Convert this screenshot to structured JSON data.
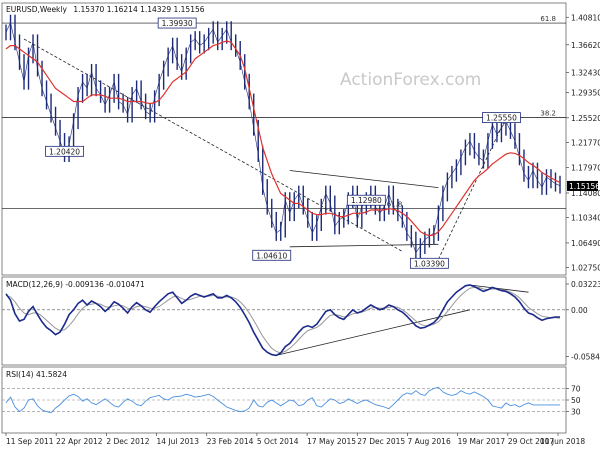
{
  "chart_data": [
    {
      "type": "candlestick",
      "title": "EURUSD,Weekly",
      "ohlc_readout": "1.15370 1.16214 1.14329 1.15156",
      "watermark": "ActionForex.com",
      "ylim": [
        1.0222,
        1.4237
      ],
      "yticks": [
        "1.40810",
        "1.36620",
        "1.32430",
        "1.29350",
        "1.25520",
        "1.21770",
        "1.17970",
        "1.14080",
        "1.10340",
        "1.06490",
        "1.02750"
      ],
      "ytick_values": [
        1.4081,
        1.3662,
        1.3243,
        1.2935,
        1.2552,
        1.2177,
        1.1797,
        1.1408,
        1.1034,
        1.0649,
        1.0275
      ],
      "current_price": {
        "value": 1.15156,
        "label": "1.15156",
        "color": "#000000"
      },
      "series": [
        {
          "name": "price",
          "color": "#1c2a78",
          "values": [
            1.385,
            1.4,
            1.37,
            1.34,
            1.31,
            1.35,
            1.37,
            1.33,
            1.3,
            1.28,
            1.26,
            1.24,
            1.22,
            1.2,
            1.215,
            1.25,
            1.29,
            1.31,
            1.3,
            1.325,
            1.3,
            1.29,
            1.275,
            1.29,
            1.31,
            1.28,
            1.275,
            1.26,
            1.29,
            1.3,
            1.28,
            1.265,
            1.26,
            1.285,
            1.31,
            1.33,
            1.35,
            1.365,
            1.34,
            1.325,
            1.35,
            1.37,
            1.375,
            1.365,
            1.37,
            1.38,
            1.39,
            1.37,
            1.38,
            1.39,
            1.37,
            1.36,
            1.34,
            1.31,
            1.28,
            1.24,
            1.2,
            1.15,
            1.12,
            1.1,
            1.08,
            1.085,
            1.13,
            1.11,
            1.13,
            1.14,
            1.12,
            1.1,
            1.08,
            1.095,
            1.12,
            1.14,
            1.125,
            1.09,
            1.1,
            1.105,
            1.13,
            1.14,
            1.1,
            1.12,
            1.13,
            1.14,
            1.12,
            1.11,
            1.12,
            1.14,
            1.12,
            1.11,
            1.1,
            1.08,
            1.07,
            1.05,
            1.06,
            1.07,
            1.075,
            1.08,
            1.11,
            1.14,
            1.16,
            1.17,
            1.18,
            1.195,
            1.21,
            1.22,
            1.205,
            1.195,
            1.19,
            1.22,
            1.245,
            1.23,
            1.24,
            1.25,
            1.235,
            1.22,
            1.195,
            1.17,
            1.16,
            1.175,
            1.16,
            1.15,
            1.165,
            1.16,
            1.155,
            1.152
          ]
        },
        {
          "name": "ma",
          "color": "#e0322c",
          "values": [
            1.36,
            1.365,
            1.365,
            1.36,
            1.355,
            1.35,
            1.345,
            1.34,
            1.33,
            1.32,
            1.31,
            1.3,
            1.295,
            1.29,
            1.285,
            1.28,
            1.28,
            1.28,
            1.285,
            1.29,
            1.29,
            1.29,
            1.288,
            1.285,
            1.285,
            1.285,
            1.283,
            1.28,
            1.28,
            1.28,
            1.28,
            1.278,
            1.277,
            1.278,
            1.282,
            1.29,
            1.3,
            1.31,
            1.315,
            1.32,
            1.325,
            1.335,
            1.345,
            1.35,
            1.355,
            1.36,
            1.365,
            1.367,
            1.37,
            1.372,
            1.37,
            1.36,
            1.35,
            1.33,
            1.3,
            1.27,
            1.24,
            1.21,
            1.19,
            1.17,
            1.155,
            1.14,
            1.135,
            1.13,
            1.125,
            1.125,
            1.12,
            1.115,
            1.11,
            1.108,
            1.108,
            1.11,
            1.11,
            1.108,
            1.105,
            1.105,
            1.107,
            1.11,
            1.11,
            1.11,
            1.112,
            1.115,
            1.115,
            1.115,
            1.115,
            1.117,
            1.116,
            1.114,
            1.11,
            1.105,
            1.098,
            1.09,
            1.082,
            1.078,
            1.076,
            1.077,
            1.082,
            1.09,
            1.1,
            1.11,
            1.12,
            1.13,
            1.14,
            1.15,
            1.16,
            1.167,
            1.172,
            1.178,
            1.185,
            1.19,
            1.195,
            1.2,
            1.202,
            1.201,
            1.198,
            1.193,
            1.187,
            1.183,
            1.178,
            1.172,
            1.168,
            1.164,
            1.16,
            1.157
          ]
        }
      ],
      "horizontal_levels": [
        {
          "value": 1.3993,
          "label": "61.8",
          "color": "#111111"
        },
        {
          "value": 1.2555,
          "label": "38.2",
          "color": "#111111"
        },
        {
          "value": 1.117,
          "label": "61.8",
          "color": "#111111"
        }
      ],
      "annotations": [
        {
          "label": "1.39930",
          "x": 38,
          "y": 1.3993
        },
        {
          "label": "1.20420",
          "x": 13,
          "y": 1.2042
        },
        {
          "label": "1.25550",
          "x": 110,
          "y": 1.2555
        },
        {
          "label": "1.12980",
          "x": 80,
          "y": 1.1298
        },
        {
          "label": "1.04610",
          "x": 59,
          "y": 1.0461
        },
        {
          "label": "1.03390",
          "x": 94,
          "y": 1.0339
        }
      ],
      "trendlines": [
        {
          "from": [
            4,
            1.375
          ],
          "to": [
            88,
            1.052
          ],
          "dashed": true
        },
        {
          "from": [
            63,
            1.059
          ],
          "to": [
            96,
            1.0628
          ]
        },
        {
          "from": [
            63,
            1.175
          ],
          "to": [
            96,
            1.149
          ]
        },
        {
          "from": [
            96,
            1.04
          ],
          "to": [
            111,
            1.255
          ],
          "dashed": true
        }
      ]
    },
    {
      "type": "line",
      "title": "MACD(12,26,9) -0.009136 -0.010471",
      "ylim": [
        -0.064,
        0.036
      ],
      "yticks": [
        "0.032235",
        "0.00",
        "-0.058434"
      ],
      "ytick_values": [
        0.032235,
        0.0,
        -0.058434
      ],
      "zero_dashed": true,
      "series": [
        {
          "name": "macd",
          "color": "#1c2a8c",
          "values": [
            0.02,
            0.012,
            -0.005,
            -0.014,
            -0.012,
            -0.002,
            0.004,
            -0.006,
            -0.015,
            -0.022,
            -0.026,
            -0.031,
            -0.028,
            -0.018,
            -0.006,
            0.0,
            0.008,
            0.012,
            0.006,
            0.011,
            0.008,
            0.004,
            -0.002,
            0.003,
            0.01,
            0.007,
            0.002,
            -0.004,
            0.004,
            0.009,
            0.005,
            0.0,
            -0.003,
            0.004,
            0.01,
            0.015,
            0.02,
            0.022,
            0.015,
            0.008,
            0.012,
            0.017,
            0.02,
            0.018,
            0.016,
            0.018,
            0.02,
            0.015,
            0.015,
            0.018,
            0.015,
            0.01,
            0.003,
            -0.006,
            -0.016,
            -0.028,
            -0.038,
            -0.048,
            -0.053,
            -0.056,
            -0.057,
            -0.054,
            -0.046,
            -0.042,
            -0.035,
            -0.028,
            -0.022,
            -0.02,
            -0.022,
            -0.018,
            -0.01,
            -0.002,
            0.0,
            -0.006,
            -0.01,
            -0.012,
            -0.006,
            0.0,
            -0.004,
            -0.002,
            0.002,
            0.006,
            0.003,
            0.0,
            0.002,
            0.006,
            0.004,
            0.0,
            -0.003,
            -0.008,
            -0.014,
            -0.02,
            -0.023,
            -0.022,
            -0.019,
            -0.016,
            -0.01,
            0.0,
            0.01,
            0.016,
            0.022,
            0.026,
            0.03,
            0.031,
            0.029,
            0.026,
            0.023,
            0.025,
            0.028,
            0.026,
            0.024,
            0.023,
            0.02,
            0.016,
            0.01,
            0.002,
            -0.004,
            -0.006,
            -0.01,
            -0.013,
            -0.011,
            -0.01,
            -0.009,
            -0.009
          ]
        },
        {
          "name": "signal",
          "color": "#999999",
          "values": [
            0.018,
            0.016,
            0.01,
            0.002,
            -0.004,
            -0.006,
            -0.004,
            -0.004,
            -0.008,
            -0.013,
            -0.018,
            -0.023,
            -0.026,
            -0.025,
            -0.02,
            -0.013,
            -0.005,
            0.002,
            0.006,
            0.007,
            0.008,
            0.007,
            0.004,
            0.003,
            0.005,
            0.006,
            0.005,
            0.002,
            0.001,
            0.004,
            0.005,
            0.004,
            0.002,
            0.002,
            0.004,
            0.008,
            0.012,
            0.016,
            0.017,
            0.014,
            0.012,
            0.013,
            0.015,
            0.017,
            0.017,
            0.017,
            0.018,
            0.017,
            0.016,
            0.016,
            0.016,
            0.014,
            0.01,
            0.004,
            -0.004,
            -0.013,
            -0.023,
            -0.033,
            -0.041,
            -0.048,
            -0.052,
            -0.054,
            -0.052,
            -0.048,
            -0.043,
            -0.037,
            -0.031,
            -0.026,
            -0.024,
            -0.022,
            -0.018,
            -0.012,
            -0.007,
            -0.006,
            -0.007,
            -0.009,
            -0.008,
            -0.005,
            -0.004,
            -0.003,
            -0.001,
            0.002,
            0.003,
            0.002,
            0.002,
            0.003,
            0.004,
            0.003,
            0.0,
            -0.004,
            -0.009,
            -0.014,
            -0.018,
            -0.02,
            -0.02,
            -0.018,
            -0.015,
            -0.009,
            -0.002,
            0.005,
            0.012,
            0.018,
            0.023,
            0.027,
            0.028,
            0.028,
            0.026,
            0.025,
            0.026,
            0.026,
            0.025,
            0.024,
            0.022,
            0.019,
            0.015,
            0.009,
            0.003,
            -0.001,
            -0.005,
            -0.008,
            -0.009,
            -0.01,
            -0.01,
            -0.0105
          ]
        }
      ],
      "trendlines": [
        {
          "from": [
            60,
            -0.057
          ],
          "to": [
            103,
            0.0
          ]
        },
        {
          "from": [
            103,
            0.031
          ],
          "to": [
            116,
            0.022
          ]
        }
      ]
    },
    {
      "type": "line",
      "title": "RSI(14) 41.5824",
      "ylim": [
        0,
        100
      ],
      "yticks": [
        "70",
        "50",
        "30"
      ],
      "ytick_values": [
        70,
        50,
        30
      ],
      "dashed_levels": [
        70,
        50,
        30
      ],
      "series": [
        {
          "name": "rsi",
          "color": "#4a90e2",
          "values": [
            45,
            55,
            38,
            30,
            36,
            50,
            52,
            40,
            33,
            30,
            28,
            36,
            42,
            50,
            57,
            60,
            56,
            48,
            52,
            45,
            42,
            47,
            52,
            46,
            40,
            38,
            46,
            52,
            48,
            42,
            40,
            48,
            54,
            56,
            58,
            52,
            50,
            55,
            56,
            57,
            60,
            58,
            55,
            56,
            58,
            60,
            56,
            50,
            44,
            38,
            35,
            32,
            30,
            31,
            36,
            50,
            40,
            38,
            46,
            50,
            45,
            40,
            45,
            50,
            48,
            40,
            42,
            50,
            54,
            40,
            38,
            45,
            52,
            50,
            44,
            46,
            52,
            48,
            44,
            48,
            50,
            46,
            42,
            40,
            38,
            35,
            42,
            50,
            58,
            62,
            60,
            66,
            60,
            58,
            66,
            70,
            72,
            64,
            60,
            58,
            60,
            66,
            62,
            60,
            64,
            60,
            56,
            50,
            40,
            38,
            36,
            45,
            40,
            42,
            38,
            42,
            45,
            41.58,
            41.58,
            41.58,
            41.58,
            41.58,
            41.58,
            41.58
          ]
        }
      ]
    }
  ],
  "xaxis": {
    "labels": [
      "11 Sep 2011",
      "22 Apr 2012",
      "2 Dec 2012",
      "14 Jul 2013",
      "23 Feb 2014",
      "5 Oct 2014",
      "17 May 2015",
      "27 Dec 2015",
      "7 Aug 2016",
      "19 Mar 2017",
      "29 Oct 2017",
      "10 Jun 2018"
    ]
  }
}
